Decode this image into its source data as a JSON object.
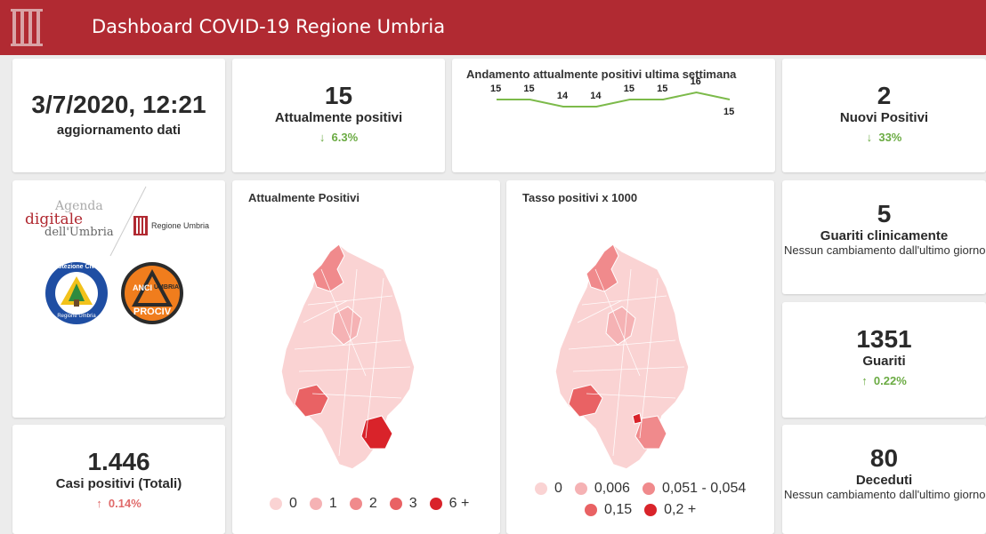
{
  "header": {
    "title": "Dashboard COVID-19 Regione Umbria"
  },
  "update": {
    "datetime": "3/7/2020, 12:21",
    "label": "aggiornamento dati"
  },
  "attualmente_positivi": {
    "value": "15",
    "label": "Attualmente positivi",
    "change": "6.3%",
    "direction": "down"
  },
  "trend": {
    "title": "Andamento attualmente positivi ultima settimana",
    "values": [
      15,
      15,
      14,
      14,
      15,
      15,
      16,
      15
    ],
    "labels": [
      "15",
      "15",
      "14",
      "14",
      "15",
      "15",
      "16",
      "15"
    ]
  },
  "nuovi_positivi": {
    "value": "2",
    "label": "Nuovi Positivi",
    "change": "33%",
    "direction": "down"
  },
  "logos": {
    "agenda_line1": "Agenda",
    "agenda_line2": "digitale",
    "agenda_line3": "dell'Umbria",
    "regione": "Regione Umbria",
    "protezione": "Protezione Civile",
    "protezione_sub": "Regione Umbria",
    "anci_top": "ANCI",
    "anci_mid": "UMBRIA",
    "anci_bottom": "PROCIV"
  },
  "map1": {
    "title": "Attualmente Positivi",
    "legend": [
      {
        "label": "0",
        "color": "#fad3d3"
      },
      {
        "label": "1",
        "color": "#f5b2b4"
      },
      {
        "label": "2",
        "color": "#f08a8c"
      },
      {
        "label": "3",
        "color": "#e96264"
      },
      {
        "label": "6 +",
        "color": "#d9232a"
      }
    ]
  },
  "map2": {
    "title": "Tasso positivi x 1000",
    "legend": [
      {
        "label": "0",
        "color": "#fad3d3"
      },
      {
        "label": "0,006",
        "color": "#f5b2b4"
      },
      {
        "label": "0,051 - 0,054",
        "color": "#f08a8c"
      },
      {
        "label": "0,15",
        "color": "#e96264"
      },
      {
        "label": "0,2 +",
        "color": "#d9232a"
      }
    ]
  },
  "guariti_clinicamente": {
    "value": "5",
    "label": "Guariti clinicamente",
    "note": "Nessun cambiamento dall'ultimo giorno"
  },
  "guariti": {
    "value": "1351",
    "label": "Guariti",
    "change": "0.22%",
    "direction": "up"
  },
  "casi_totali": {
    "value": "1.446",
    "label": "Casi positivi (Totali)",
    "change": "0.14%",
    "direction": "up"
  },
  "deceduti": {
    "value": "80",
    "label": "Deceduti",
    "note": "Nessun cambiamento dall'ultimo giorno"
  }
}
